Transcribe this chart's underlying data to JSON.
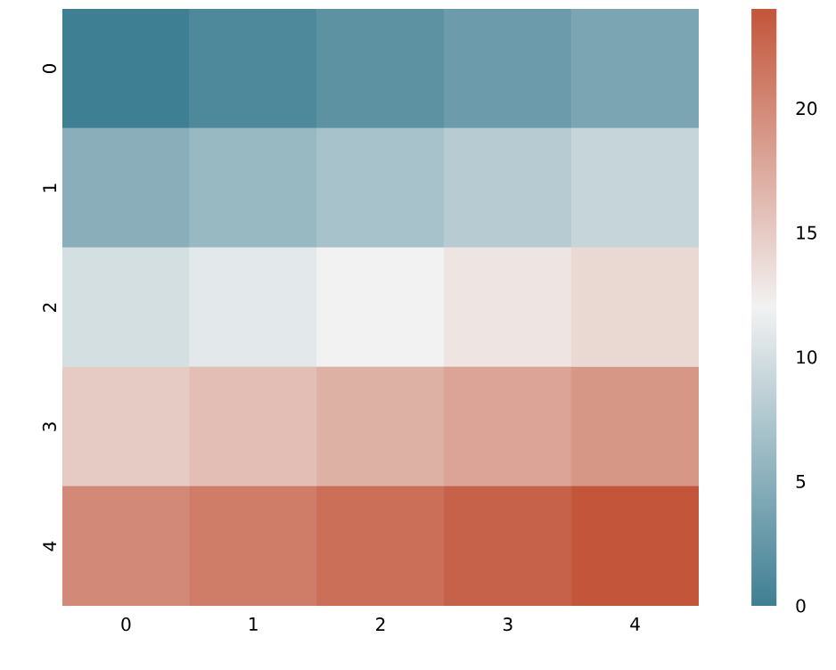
{
  "chart_data": {
    "type": "heatmap",
    "categories": [
      "0",
      "1",
      "2",
      "3",
      "4"
    ],
    "y_categories": [
      "0",
      "1",
      "2",
      "3",
      "4"
    ],
    "cells": [
      [
        0,
        1,
        2,
        3,
        4
      ],
      [
        5,
        6,
        7,
        8,
        9
      ],
      [
        10,
        11,
        12,
        13,
        14
      ],
      [
        15,
        16,
        17,
        18,
        19
      ],
      [
        20,
        21,
        22,
        23,
        24
      ]
    ],
    "clim": [
      0,
      24
    ],
    "cticks": [
      0,
      5,
      10,
      15,
      20
    ]
  }
}
